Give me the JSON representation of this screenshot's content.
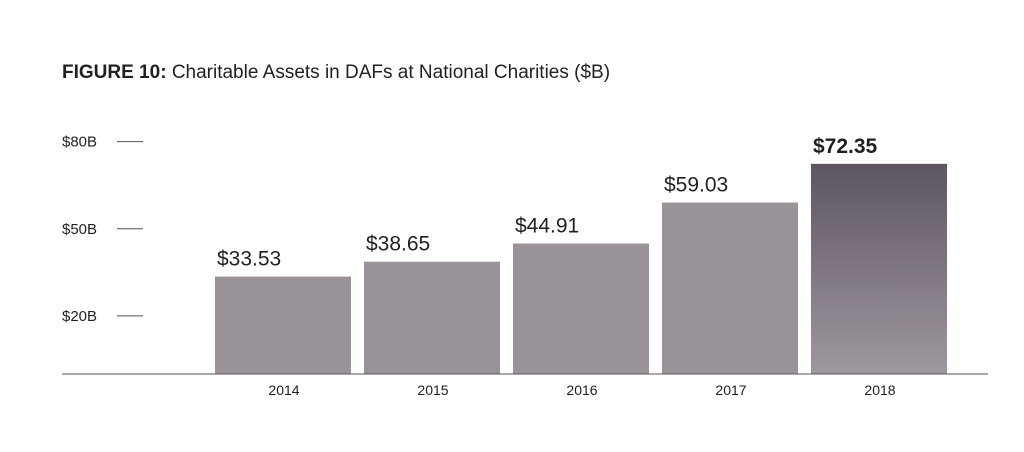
{
  "title": {
    "prefix": "FIGURE 10:",
    "text": "Charitable Assets in DAFs at National Charities ($B)"
  },
  "colors": {
    "bar": "#9a9299",
    "highlight_top": "#5e5563",
    "highlight_bottom": "#9f979f",
    "axis": "#555555",
    "text": "#231f20"
  },
  "chart_data": {
    "type": "bar",
    "title": "FIGURE 10: Charitable Assets in DAFs at National Charities ($B)",
    "xlabel": "",
    "ylabel": "",
    "categories": [
      "2014",
      "2015",
      "2016",
      "2017",
      "2018"
    ],
    "values": [
      33.53,
      38.65,
      44.91,
      59.03,
      72.35
    ],
    "value_labels": [
      "$33.53",
      "$38.65",
      "$44.91",
      "$59.03",
      "$72.35"
    ],
    "highlighted_index": 4,
    "yticks": [
      {
        "value": 20,
        "label": "$20B"
      },
      {
        "value": 50,
        "label": "$50B"
      },
      {
        "value": 80,
        "label": "$80B"
      }
    ],
    "ylim": [
      0,
      85
    ],
    "grid": false,
    "legend": "none"
  }
}
